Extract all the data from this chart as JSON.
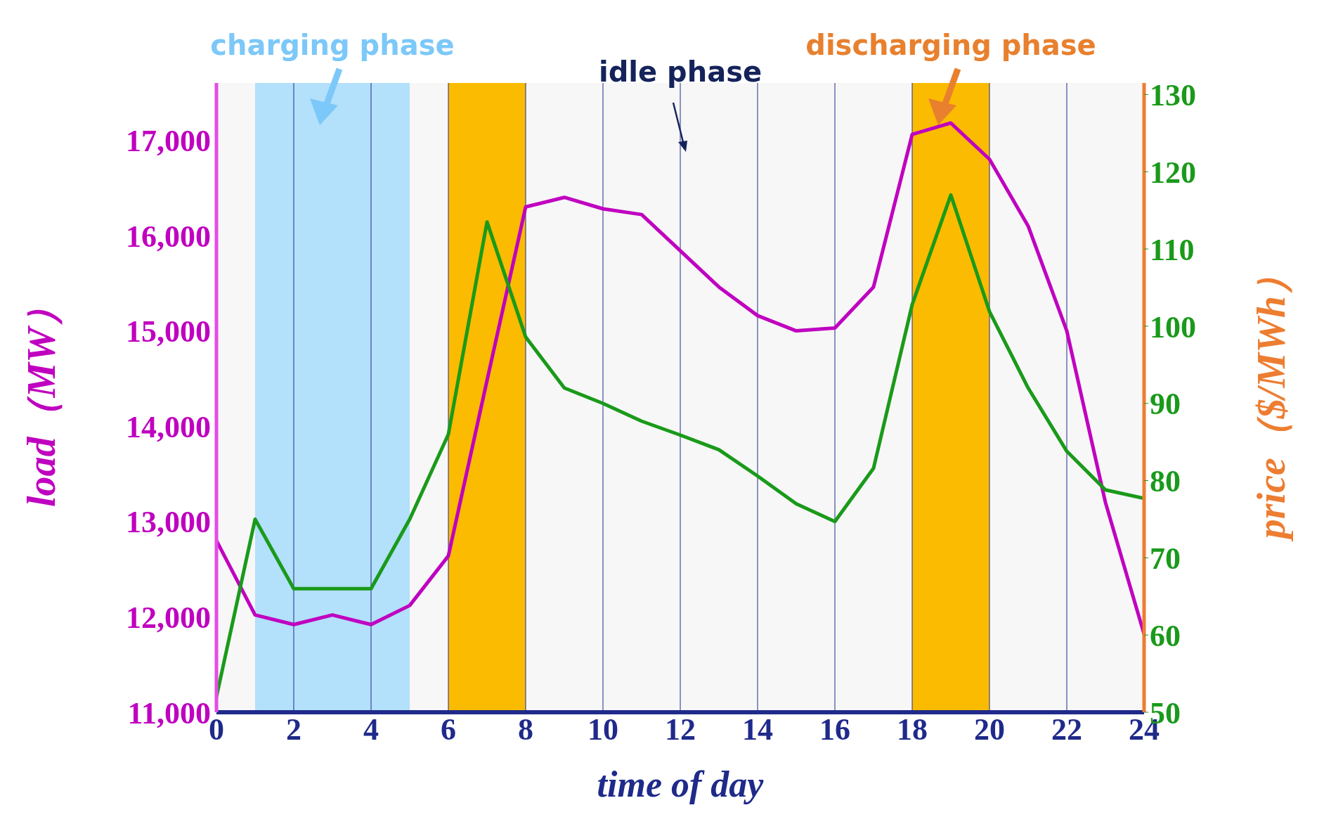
{
  "chart_data": {
    "type": "line",
    "xlabel": "time of day",
    "ylabel": "load（MW）",
    "y2label": "price（$/MWh）",
    "x": [
      0,
      1,
      2,
      3,
      4,
      5,
      6,
      7,
      8,
      9,
      10,
      11,
      12,
      13,
      14,
      15,
      16,
      17,
      18,
      19,
      20,
      21,
      22,
      23,
      24
    ],
    "series": [
      {
        "color": "#c000c0",
        "values": [
          12800,
          12020,
          11920,
          12020,
          11920,
          12120,
          12640,
          14480,
          16300,
          16400,
          16280,
          16220,
          15840,
          15460,
          15160,
          15000,
          15030,
          15460,
          17060,
          17180,
          16800,
          16100,
          15000,
          13200,
          11820
        ]
      },
      {
        "color": "#1a9a1a",
        "axis": "y2",
        "values": [
          52,
          75,
          66,
          66,
          66,
          75,
          86,
          113.5,
          98.6,
          92,
          90,
          87.7,
          85.9,
          84,
          80.6,
          77,
          74.7,
          81.6,
          102.8,
          117,
          101.9,
          92,
          83.8,
          78.8,
          77.7
        ]
      }
    ],
    "xlim": [
      0,
      24
    ],
    "xticks": [
      0,
      2,
      4,
      6,
      8,
      10,
      12,
      14,
      16,
      18,
      20,
      22,
      24
    ],
    "ylim": [
      11000,
      17600
    ],
    "yticks": [
      {
        "value": 11000,
        "label": "11,000"
      },
      {
        "value": 12000,
        "label": "12,000"
      },
      {
        "value": 13000,
        "label": "13,000"
      },
      {
        "value": 14000,
        "label": "14,000"
      },
      {
        "value": 15000,
        "label": "15,000"
      },
      {
        "value": 16000,
        "label": "16,000"
      },
      {
        "value": 17000,
        "label": "17,000"
      }
    ],
    "y2lim": [
      50,
      131.5
    ],
    "y2ticks": [
      50,
      60,
      70,
      80,
      90,
      100,
      110,
      120,
      130
    ],
    "bands": [
      {
        "axis": "x",
        "from": 0,
        "to": 24,
        "label": "idle phase",
        "color": "#f7f7f7"
      },
      {
        "axis": "x",
        "from": 1,
        "to": 5,
        "label": "charging phase",
        "color": "#b3e0fb"
      },
      {
        "axis": "x",
        "from": 6,
        "to": 8,
        "label": null,
        "color": "#fbbb00"
      },
      {
        "axis": "x",
        "from": 18,
        "to": 20,
        "label": "discharging phase",
        "color": "#fbbb00"
      }
    ],
    "grid": "x",
    "legend": false,
    "marker": "none",
    "line_style": "solid"
  }
}
